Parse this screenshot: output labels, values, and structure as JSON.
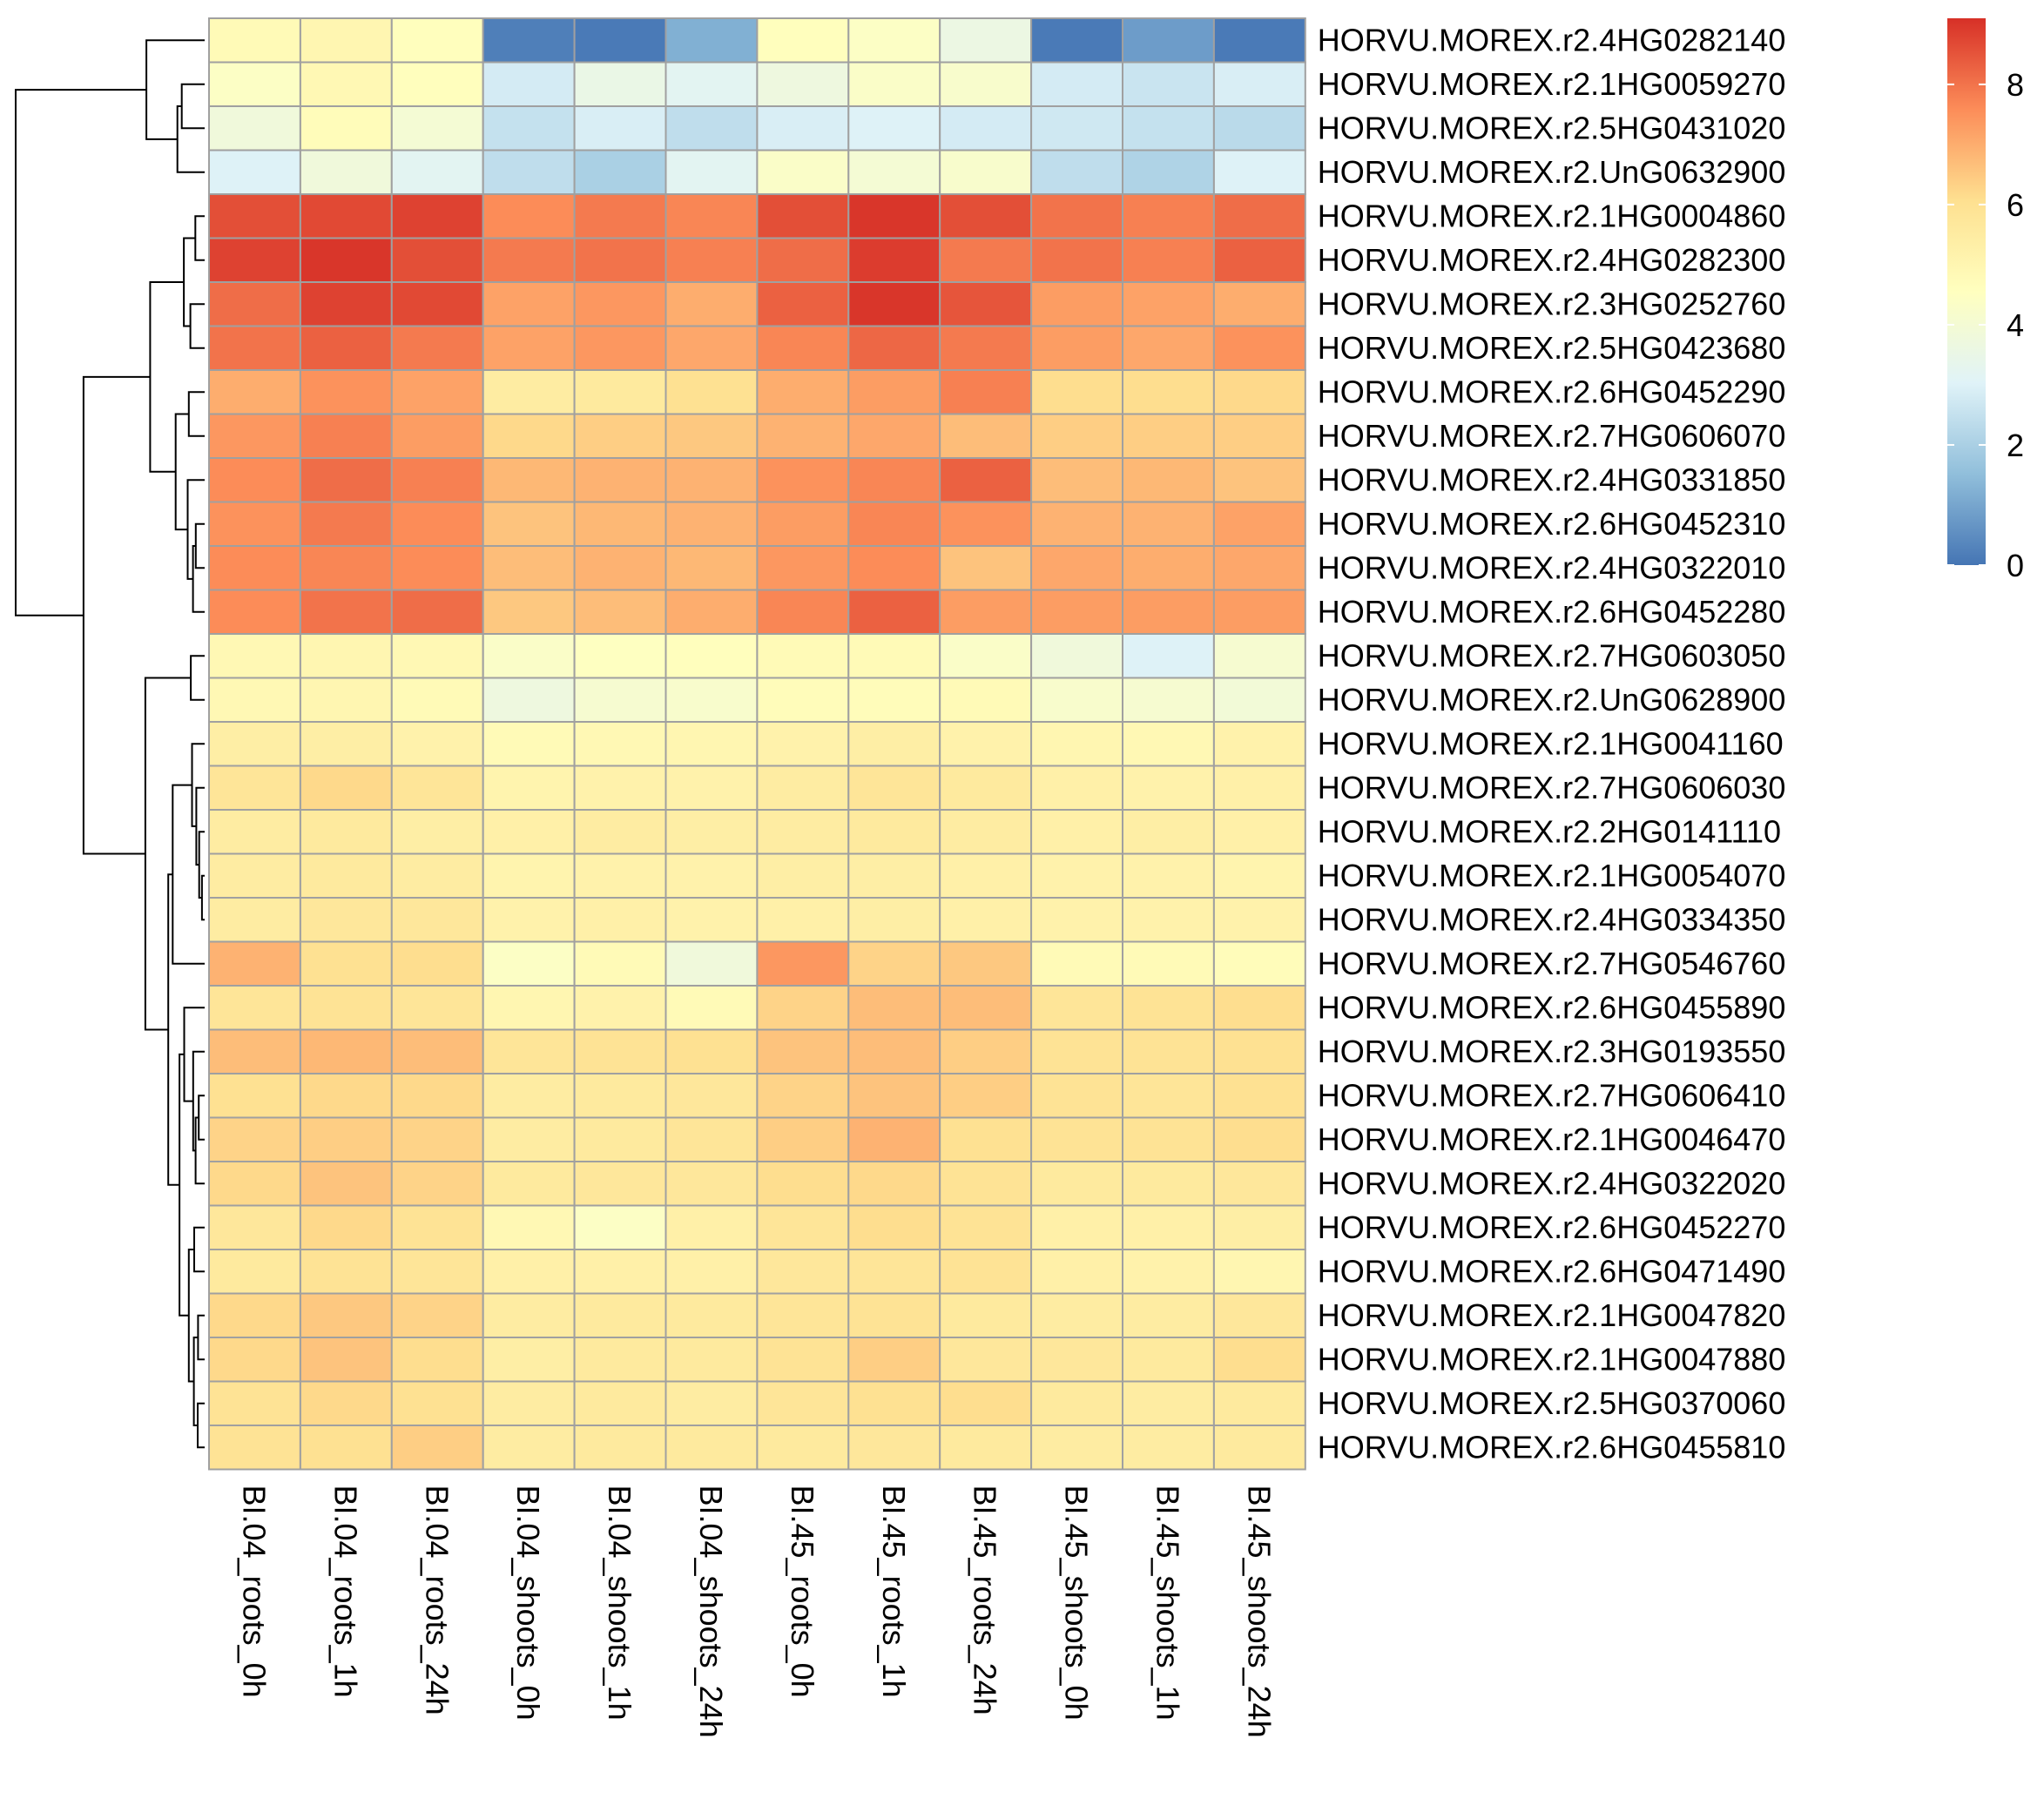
{
  "chart_data": {
    "type": "heatmap",
    "title": "",
    "xlabel": "",
    "ylabel": "",
    "columns": [
      "BI.04_roots_0h",
      "BI.04_roots_1h",
      "BI.04_roots_24h",
      "BI.04_shoots_0h",
      "BI.04_shoots_1h",
      "BI.04_shoots_24h",
      "BI.45_roots_0h",
      "BI.45_roots_1h",
      "BI.45_roots_24h",
      "BI.45_shoots_0h",
      "BI.45_shoots_1h",
      "BI.45_shoots_24h"
    ],
    "rows": [
      "HORVU.MOREX.r2.4HG0282140",
      "HORVU.MOREX.r2.1HG0059270",
      "HORVU.MOREX.r2.5HG0431020",
      "HORVU.MOREX.r2.UnG0632900",
      "HORVU.MOREX.r2.1HG0004860",
      "HORVU.MOREX.r2.4HG0282300",
      "HORVU.MOREX.r2.3HG0252760",
      "HORVU.MOREX.r2.5HG0423680",
      "HORVU.MOREX.r2.6HG0452290",
      "HORVU.MOREX.r2.7HG0606070",
      "HORVU.MOREX.r2.4HG0331850",
      "HORVU.MOREX.r2.6HG0452310",
      "HORVU.MOREX.r2.4HG0322010",
      "HORVU.MOREX.r2.6HG0452280",
      "HORVU.MOREX.r2.7HG0603050",
      "HORVU.MOREX.r2.UnG0628900",
      "HORVU.MOREX.r2.1HG0041160",
      "HORVU.MOREX.r2.7HG0606030",
      "HORVU.MOREX.r2.2HG0141110",
      "HORVU.MOREX.r2.1HG0054070",
      "HORVU.MOREX.r2.4HG0334350",
      "HORVU.MOREX.r2.7HG0546760",
      "HORVU.MOREX.r2.6HG0455890",
      "HORVU.MOREX.r2.3HG0193550",
      "HORVU.MOREX.r2.7HG0606410",
      "HORVU.MOREX.r2.1HG0046470",
      "HORVU.MOREX.r2.4HG0322020",
      "HORVU.MOREX.r2.6HG0452270",
      "HORVU.MOREX.r2.6HG0471490",
      "HORVU.MOREX.r2.1HG0047820",
      "HORVU.MOREX.r2.1HG0047880",
      "HORVU.MOREX.r2.5HG0370060",
      "HORVU.MOREX.r2.6HG0455810"
    ],
    "values": [
      [
        4.8,
        5.0,
        4.6,
        0.2,
        0.1,
        1.2,
        4.6,
        4.4,
        3.6,
        0.1,
        0.8,
        0.1
      ],
      [
        4.4,
        4.9,
        4.6,
        2.8,
        3.5,
        3.2,
        3.7,
        4.3,
        4.2,
        2.8,
        2.6,
        2.9
      ],
      [
        3.8,
        4.7,
        4.0,
        2.5,
        2.9,
        2.4,
        2.9,
        3.0,
        2.8,
        2.7,
        2.5,
        2.3
      ],
      [
        3.0,
        3.8,
        3.2,
        2.4,
        2.0,
        3.2,
        4.3,
        4.0,
        4.2,
        2.4,
        2.1,
        3.0
      ],
      [
        8.6,
        8.7,
        8.8,
        7.6,
        7.9,
        7.7,
        8.6,
        9.0,
        8.6,
        8.0,
        7.8,
        8.1
      ],
      [
        8.8,
        9.0,
        8.6,
        7.9,
        8.0,
        7.8,
        8.1,
        8.9,
        7.9,
        8.0,
        7.8,
        8.3
      ],
      [
        8.1,
        8.8,
        8.7,
        7.2,
        7.4,
        7.0,
        8.3,
        9.0,
        8.5,
        7.3,
        7.2,
        7.0
      ],
      [
        8.0,
        8.3,
        7.9,
        7.2,
        7.4,
        7.1,
        7.7,
        8.2,
        7.9,
        7.3,
        7.1,
        7.5
      ],
      [
        7.0,
        7.5,
        7.2,
        5.5,
        5.6,
        6.0,
        7.0,
        7.3,
        7.8,
        6.1,
        6.1,
        6.2
      ],
      [
        7.4,
        7.8,
        7.3,
        6.2,
        6.4,
        6.5,
        6.9,
        7.1,
        6.7,
        6.4,
        6.4,
        6.4
      ],
      [
        7.6,
        8.1,
        7.8,
        6.8,
        6.9,
        6.9,
        7.5,
        7.7,
        8.3,
        6.7,
        6.8,
        6.6
      ],
      [
        7.5,
        7.9,
        7.6,
        6.6,
        6.8,
        6.9,
        7.3,
        7.7,
        7.5,
        6.9,
        6.9,
        7.2
      ],
      [
        7.6,
        7.7,
        7.6,
        6.7,
        6.9,
        6.8,
        7.4,
        7.6,
        6.6,
        7.1,
        7.0,
        7.1
      ],
      [
        7.6,
        8.0,
        8.1,
        6.5,
        6.7,
        7.0,
        7.7,
        8.3,
        7.3,
        7.3,
        7.3,
        7.3
      ],
      [
        4.9,
        5.0,
        4.9,
        4.3,
        4.5,
        4.6,
        4.8,
        4.8,
        4.3,
        3.8,
        3.0,
        4.1
      ],
      [
        4.9,
        5.0,
        4.8,
        3.7,
        4.1,
        4.2,
        4.7,
        4.7,
        4.8,
        4.2,
        4.1,
        3.9
      ],
      [
        5.4,
        5.4,
        5.2,
        4.8,
        4.9,
        5.0,
        5.2,
        5.4,
        5.2,
        5.0,
        4.9,
        5.2
      ],
      [
        5.8,
        6.2,
        5.8,
        5.1,
        5.2,
        5.2,
        5.5,
        5.8,
        5.6,
        5.3,
        5.2,
        5.3
      ],
      [
        5.5,
        5.6,
        5.4,
        5.3,
        5.5,
        5.4,
        5.5,
        5.6,
        5.5,
        5.3,
        5.4,
        5.3
      ],
      [
        5.5,
        5.6,
        5.5,
        5.1,
        5.2,
        5.2,
        5.4,
        5.4,
        5.3,
        5.2,
        5.2,
        5.1
      ],
      [
        5.5,
        5.7,
        5.7,
        5.2,
        5.3,
        5.2,
        5.3,
        5.4,
        5.3,
        5.2,
        5.2,
        5.2
      ],
      [
        6.9,
        6.0,
        6.1,
        4.4,
        4.8,
        3.8,
        7.4,
        6.3,
        6.5,
        4.8,
        4.8,
        4.7
      ],
      [
        5.8,
        5.9,
        5.8,
        5.0,
        5.2,
        4.8,
        6.3,
        6.7,
        6.7,
        5.8,
        5.9,
        6.1
      ],
      [
        6.7,
        6.8,
        6.7,
        5.8,
        5.9,
        6.0,
        6.6,
        6.7,
        6.4,
        5.9,
        5.9,
        6.0
      ],
      [
        6.0,
        6.2,
        6.2,
        5.5,
        5.6,
        5.7,
        6.3,
        6.6,
        6.4,
        5.9,
        5.8,
        6.0
      ],
      [
        6.3,
        6.4,
        6.3,
        5.5,
        5.6,
        5.8,
        6.4,
        6.9,
        6.0,
        5.9,
        5.9,
        6.1
      ],
      [
        6.2,
        6.6,
        6.3,
        5.6,
        5.7,
        5.7,
        6.1,
        6.2,
        5.9,
        5.6,
        5.6,
        5.7
      ],
      [
        5.7,
        6.2,
        5.9,
        4.9,
        4.4,
        5.3,
        5.8,
        6.1,
        5.9,
        5.3,
        5.3,
        5.4
      ],
      [
        5.6,
        5.9,
        5.8,
        5.3,
        5.3,
        5.3,
        5.7,
        5.8,
        5.9,
        5.3,
        5.2,
        5.0
      ],
      [
        6.2,
        6.5,
        6.3,
        5.5,
        5.6,
        5.6,
        5.8,
        5.9,
        5.6,
        5.5,
        5.5,
        5.7
      ],
      [
        6.2,
        6.6,
        6.1,
        5.4,
        5.6,
        5.6,
        5.9,
        6.4,
        5.7,
        5.7,
        5.6,
        6.1
      ],
      [
        5.9,
        6.2,
        6.0,
        5.5,
        5.6,
        5.5,
        5.8,
        6.0,
        6.1,
        5.6,
        5.5,
        5.6
      ],
      [
        5.9,
        6.0,
        6.4,
        5.5,
        5.6,
        5.6,
        5.6,
        5.7,
        5.6,
        5.5,
        5.5,
        5.6
      ]
    ],
    "legend": {
      "ticks": [
        0,
        2,
        4,
        6,
        8
      ],
      "range": [
        0,
        9.1
      ],
      "placement": "top-right",
      "color_stops": [
        "#4575b4",
        "#91bfdb",
        "#e0f3f8",
        "#ffffbf",
        "#fee090",
        "#fc8d59",
        "#d73027"
      ]
    },
    "cell_border_color": "#a0a0a0",
    "row_dendrogram": true,
    "column_dendrogram": false,
    "grid": false
  }
}
